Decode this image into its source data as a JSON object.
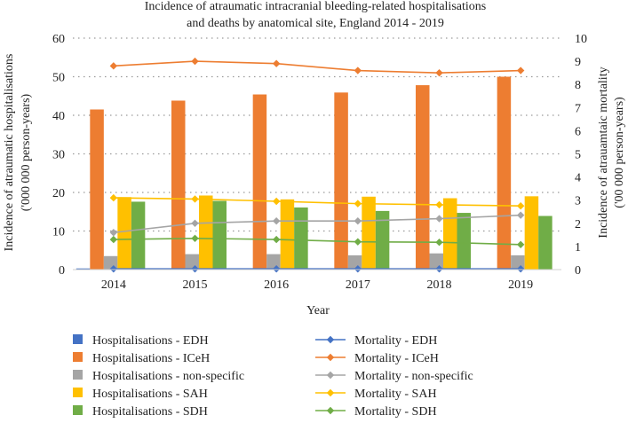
{
  "chart_data": {
    "type": "bar+line",
    "title": "Incidence of atraumatic intracranial bleeding-related hospitalisations and deaths by anatomical site, England 2014 - 2019",
    "title_lines": [
      "Incidence of atraumatic intracranial bleeding-related hospitalisations",
      "and deaths by anatomical site, England 2014 - 2019"
    ],
    "xlabel": "Year",
    "ylabel_left": "Incidence of atraumatic hospitalisations ('000 000 person-years)",
    "ylabel_left_lines": [
      "Incidence of atraumatic hospitalisations",
      "('000 000 person-years)"
    ],
    "ylabel_right": "Incidence of atrauamtaic mortality ('00 000 person-years)",
    "ylabel_right_lines": [
      "Incidence of atrauamtaic mortality",
      "('00 000 person-years)"
    ],
    "categories": [
      "2014",
      "2015",
      "2016",
      "2017",
      "2018",
      "2019"
    ],
    "ylim_left": [
      0,
      60
    ],
    "yticks_left": [
      "0",
      "10",
      "20",
      "30",
      "40",
      "50",
      "60"
    ],
    "ylim_right": [
      0,
      10
    ],
    "yticks_right": [
      "0",
      "1",
      "2",
      "3",
      "4",
      "5",
      "6",
      "7",
      "8",
      "9",
      "10"
    ],
    "grid": "dotted",
    "legend_position": "bottom",
    "bar_series": [
      {
        "name": "Hospitalisations - EDH",
        "color": "#4472c4",
        "values": [
          0.3,
          0.3,
          0.3,
          0.3,
          0.3,
          0.3
        ]
      },
      {
        "name": "Hospitalisations - ICeH",
        "color": "#ed7d31",
        "values": [
          41.5,
          43.8,
          45.4,
          45.9,
          47.8,
          50.0
        ]
      },
      {
        "name": "Hospitalisations - non-specific",
        "color": "#a5a5a5",
        "values": [
          3.5,
          4.0,
          4.0,
          3.7,
          4.2,
          3.7
        ]
      },
      {
        "name": "Hospitalisations - SAH",
        "color": "#ffc000",
        "values": [
          18.8,
          19.2,
          18.2,
          18.9,
          18.5,
          19.0
        ]
      },
      {
        "name": "Hospitalisations - SDH",
        "color": "#70ad47",
        "values": [
          17.6,
          17.8,
          16.1,
          15.2,
          14.7,
          13.9
        ]
      }
    ],
    "line_series": [
      {
        "name": "Mortality - EDH",
        "color": "#4472c4",
        "values": [
          0.03,
          0.03,
          0.03,
          0.03,
          0.03,
          0.03
        ]
      },
      {
        "name": "Mortality - ICeH",
        "color": "#ed7d31",
        "values": [
          8.8,
          9.0,
          8.9,
          8.6,
          8.5,
          8.6
        ]
      },
      {
        "name": "Mortality - non-specific",
        "color": "#a5a5a5",
        "values": [
          1.6,
          2.0,
          2.1,
          2.1,
          2.2,
          2.35
        ]
      },
      {
        "name": "Mortality - SAH",
        "color": "#ffc000",
        "values": [
          3.1,
          3.05,
          2.95,
          2.85,
          2.8,
          2.75
        ]
      },
      {
        "name": "Mortality - SDH",
        "color": "#70ad47",
        "values": [
          1.3,
          1.35,
          1.3,
          1.2,
          1.18,
          1.08
        ]
      }
    ]
  }
}
